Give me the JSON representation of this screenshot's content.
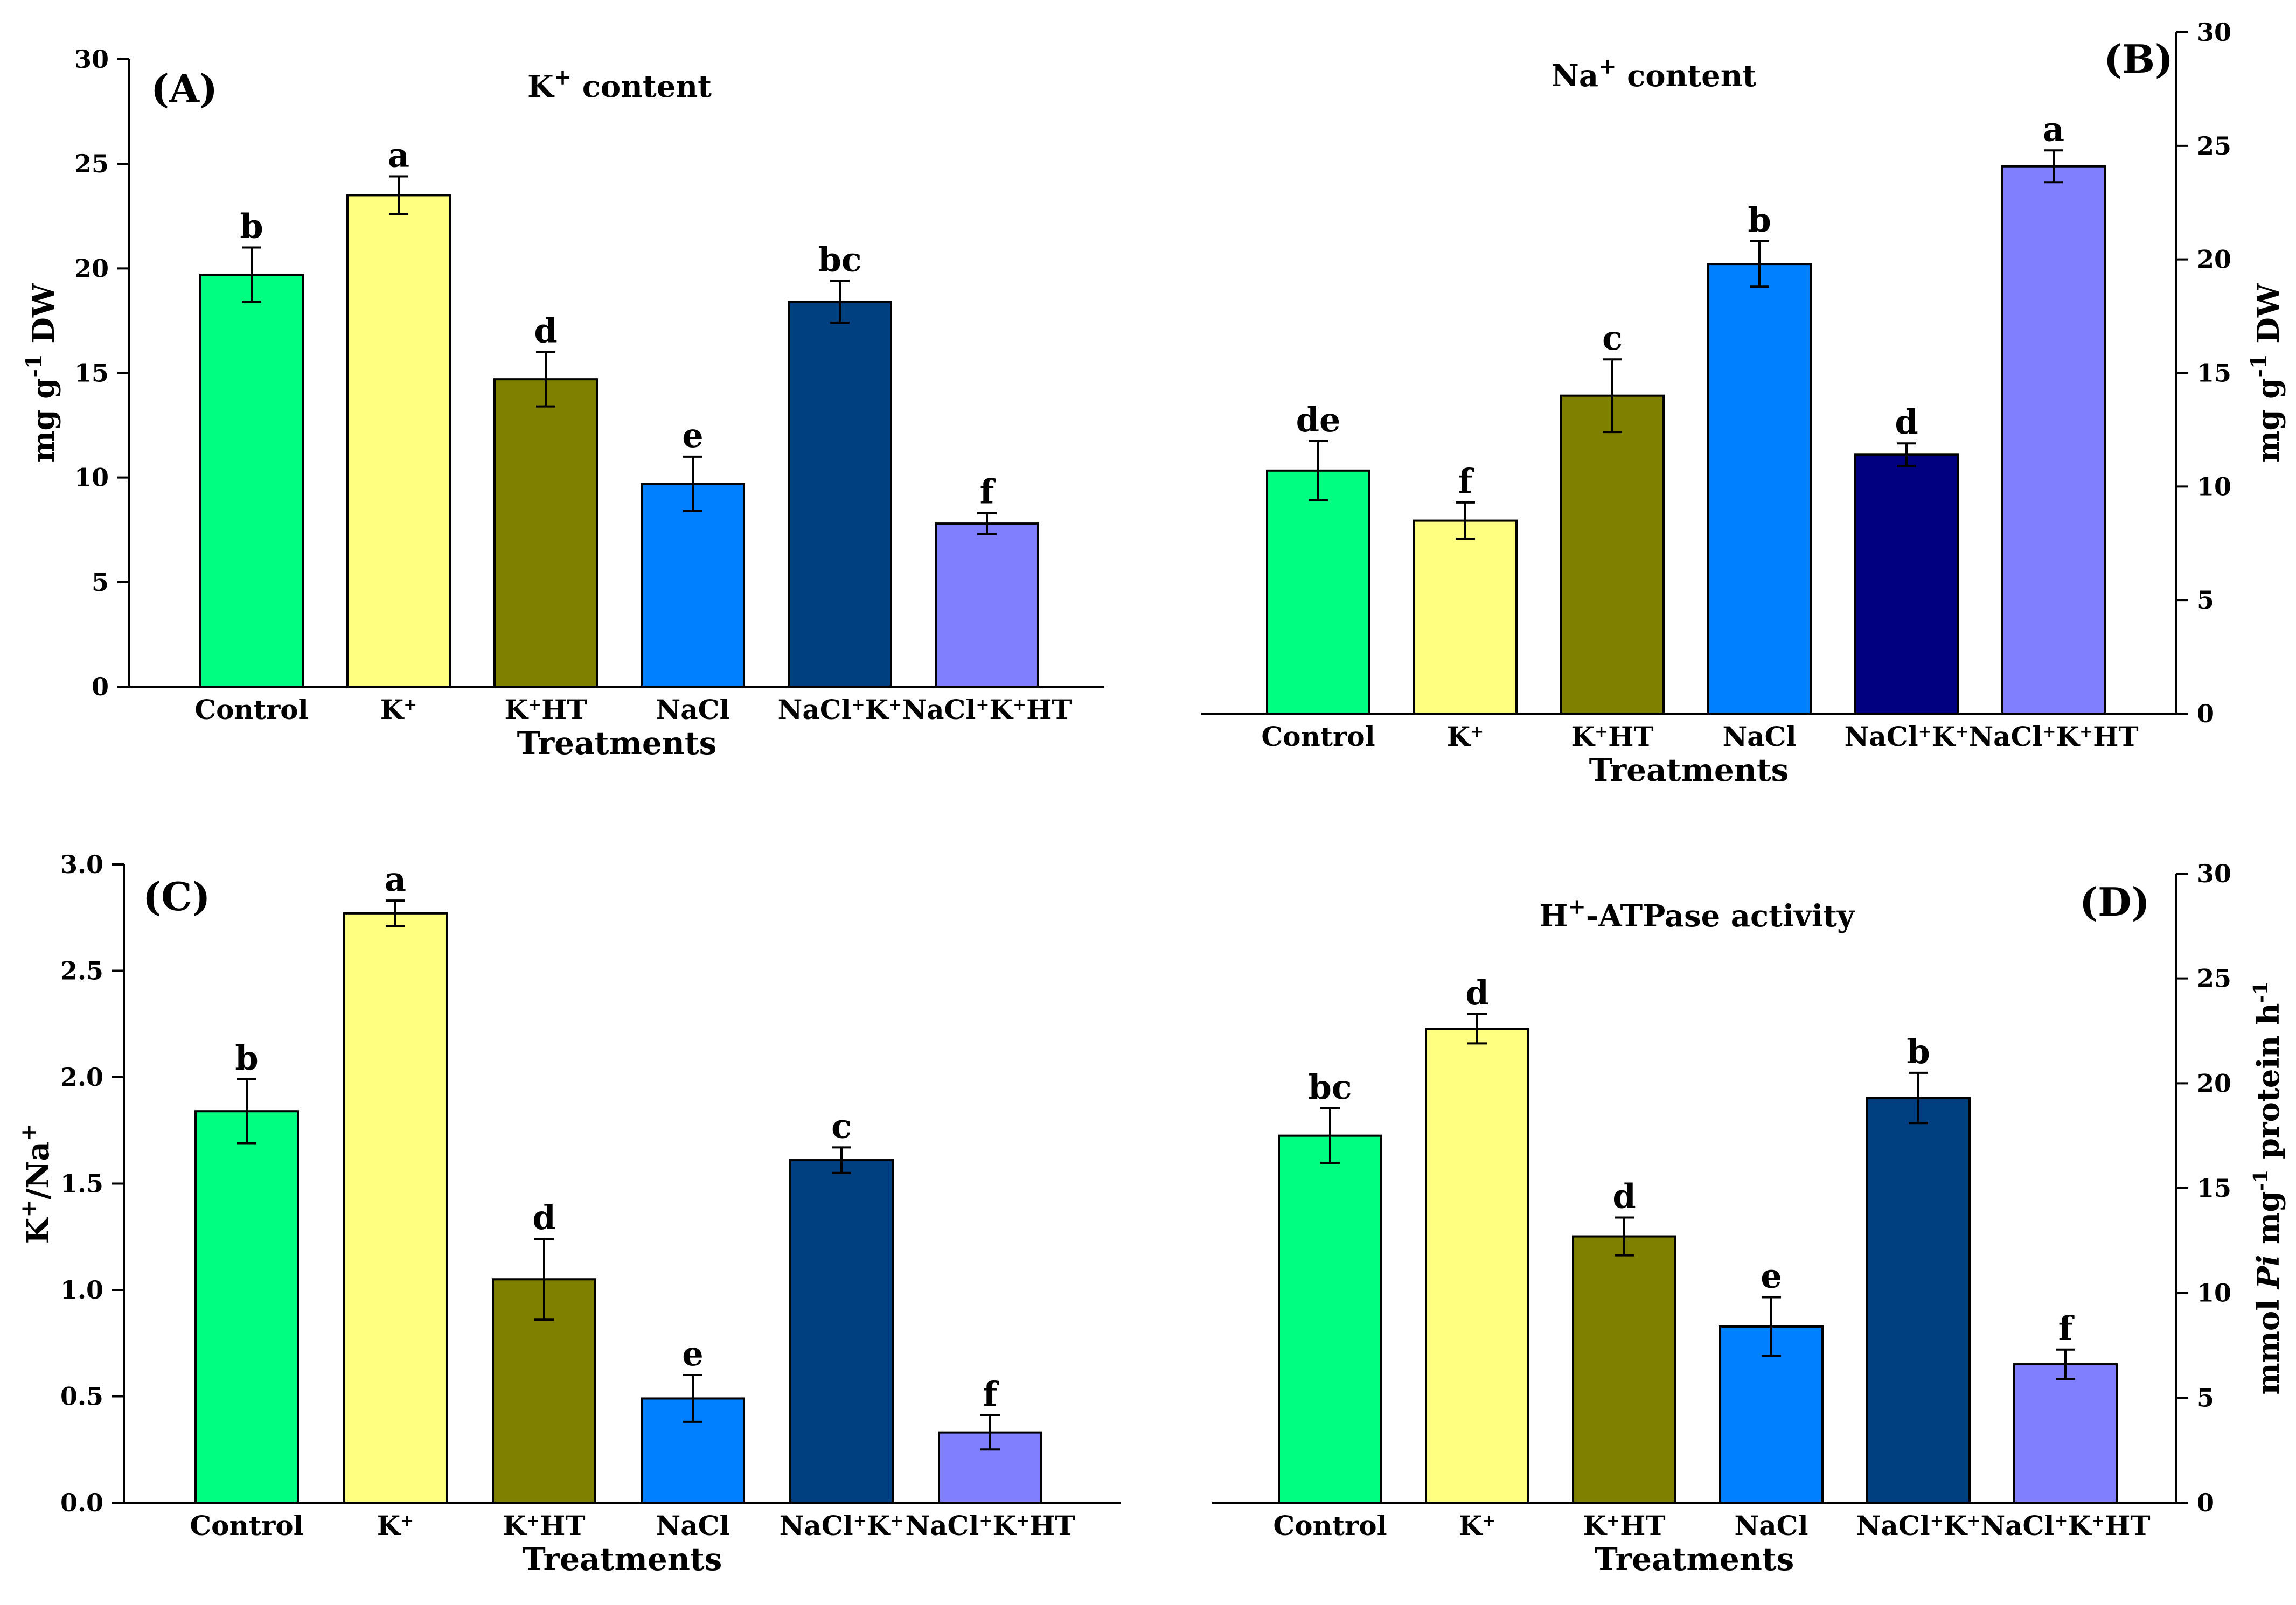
{
  "chart_data": [
    {
      "type": "bar",
      "panel_label": "(A)",
      "title": "K+ content",
      "title_parts": {
        "base": "K",
        "sup": "+",
        "rest": " content"
      },
      "xlabel": "Treatments",
      "ylabel": "mg g-1 DW",
      "ylabel_parts": {
        "base": "mg g",
        "sup": "-1",
        "rest": " DW"
      },
      "y_axis_side": "left",
      "ylim": [
        0,
        30
      ],
      "yticks": [
        "0",
        "5",
        "10",
        "15",
        "20",
        "25",
        "30"
      ],
      "categories": [
        "Control",
        "K+",
        "K+HT",
        "NaCl",
        "NaCl+K+",
        "NaCl+K+HT"
      ],
      "values": [
        19.7,
        23.5,
        14.7,
        9.7,
        18.4,
        7.8
      ],
      "errors": [
        1.3,
        0.9,
        1.3,
        1.3,
        1.0,
        0.5
      ],
      "letters": [
        "b",
        "a",
        "d",
        "e",
        "bc",
        "f"
      ],
      "colors": [
        "#00ff80",
        "#ffff80",
        "#808000",
        "#0080ff",
        "#004080",
        "#8080ff"
      ]
    },
    {
      "type": "bar",
      "panel_label": "(B)",
      "title": "Na+ content",
      "title_parts": {
        "base": "Na",
        "sup": "+",
        "rest": " content"
      },
      "xlabel": "Treatments",
      "ylabel": "mg g-1 DW",
      "ylabel_parts": {
        "base": "mg g",
        "sup": "-1",
        "rest": " DW"
      },
      "y_axis_side": "right",
      "ylim": [
        0,
        30
      ],
      "yticks": [
        "0",
        "5",
        "10",
        "15",
        "20",
        "25",
        "30"
      ],
      "categories": [
        "Control",
        "K+",
        "K+HT",
        "NaCl",
        "NaCl+K+",
        "NaCl+K+HT"
      ],
      "values": [
        10.7,
        8.5,
        14.0,
        19.8,
        11.4,
        24.1
      ],
      "errors": [
        1.3,
        0.8,
        1.6,
        1.0,
        0.5,
        0.7
      ],
      "letters": [
        "de",
        "f",
        "c",
        "b",
        "d",
        "a"
      ],
      "colors": [
        "#00ff80",
        "#ffff80",
        "#808000",
        "#0080ff",
        "#000080",
        "#8080ff"
      ]
    },
    {
      "type": "bar",
      "panel_label": "(C)",
      "title": "",
      "xlabel": "Treatments",
      "ylabel": "K+/Na+",
      "ylabel_parts": {
        "base": "K",
        "sup": "+",
        "rest": "/Na",
        "sup2": "+"
      },
      "y_axis_side": "left",
      "ylim": [
        0,
        3
      ],
      "yticks": [
        "0.0",
        "0.5",
        "1.0",
        "1.5",
        "2.0",
        "2.5",
        "3.0"
      ],
      "categories": [
        "Control",
        "K+",
        "K+HT",
        "NaCl",
        "NaCl+K+",
        "NaCl+K+HT"
      ],
      "values": [
        1.84,
        2.77,
        1.05,
        0.49,
        1.61,
        0.33
      ],
      "errors": [
        0.15,
        0.06,
        0.19,
        0.11,
        0.06,
        0.08
      ],
      "letters": [
        "b",
        "a",
        "d",
        "e",
        "c",
        "f"
      ],
      "colors": [
        "#00ff80",
        "#ffff80",
        "#808000",
        "#0080ff",
        "#004080",
        "#8080ff"
      ]
    },
    {
      "type": "bar",
      "panel_label": "(D)",
      "title": "H+-ATPase activity",
      "title_parts": {
        "base": "H",
        "sup": "+",
        "rest": "-ATPase activity"
      },
      "xlabel": "Treatments",
      "ylabel": "mmol Pi mg-1 protein h-1",
      "ylabel_parts": {
        "a": "mmol ",
        "italic": "Pi",
        "b": " mg",
        "sup": "-1",
        "c": " protein h",
        "sup2": "-1"
      },
      "y_axis_side": "right",
      "ylim": [
        0,
        30
      ],
      "yticks": [
        "0",
        "5",
        "10",
        "15",
        "20",
        "25",
        "30"
      ],
      "categories": [
        "Control",
        "K+",
        "K+HT",
        "NaCl",
        "NaCl+K+",
        "NaCl+K+HT"
      ],
      "values": [
        17.5,
        22.6,
        12.7,
        8.4,
        19.3,
        6.6
      ],
      "errors": [
        1.3,
        0.7,
        0.9,
        1.4,
        1.2,
        0.7
      ],
      "letters": [
        "bc",
        "d",
        "d",
        "e",
        "b",
        "f"
      ],
      "colors": [
        "#00ff80",
        "#ffff80",
        "#808000",
        "#0080ff",
        "#004080",
        "#8080ff"
      ]
    }
  ]
}
